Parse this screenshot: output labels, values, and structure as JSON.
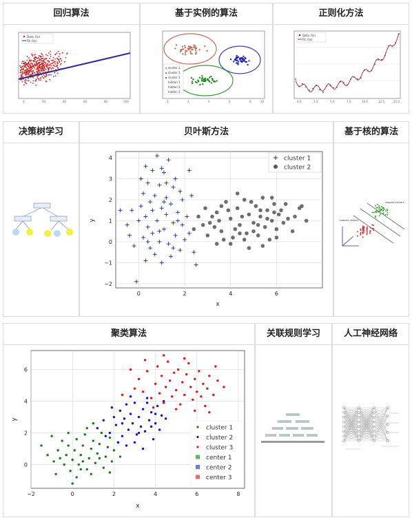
{
  "panels": {
    "regression": {
      "title": "回归算法",
      "legend": [
        "Data: f(x)",
        "Fit: f(x)"
      ]
    },
    "instance": {
      "title": "基于实例的算法",
      "legend": [
        "cluster 1",
        "cluster 2",
        "cluster 3",
        "hidden 1",
        "hidden 2",
        "hidden 3"
      ]
    },
    "regularization": {
      "title": "正则化方法",
      "legend": [
        "Data: f(x)",
        "Fit: f(x)"
      ]
    },
    "decision_tree": {
      "title": "决策树学习"
    },
    "bayes": {
      "title": "贝叶斯方法"
    },
    "kernel": {
      "title": "基于核的算法",
      "labels": [
        "support vectors",
        "support vectors"
      ]
    },
    "clustering": {
      "title": "聚类算法"
    },
    "association": {
      "title": "关联规则学习"
    },
    "neural": {
      "title": "人工神经网络"
    }
  },
  "chart_data": [
    {
      "type": "scatter",
      "id": "bayes",
      "xlabel": "x",
      "ylabel": "y",
      "xlim": [
        -1,
        8
      ],
      "ylim": [
        -2.2,
        4.3
      ],
      "xticks": [
        0,
        2,
        4,
        6
      ],
      "yticks": [
        -2,
        -1,
        0,
        1,
        2,
        3,
        4
      ],
      "grid": true,
      "legend_position": "top-right",
      "series": [
        {
          "name": "cluster 1",
          "marker": "plus",
          "color": "#1a2a9a",
          "points": [
            [
              0.8,
              4.1
            ],
            [
              0.3,
              3.6
            ],
            [
              0.6,
              3.4
            ],
            [
              1.3,
              3.9
            ],
            [
              1.0,
              3.5
            ],
            [
              1.6,
              3.0
            ],
            [
              0.4,
              2.8
            ],
            [
              1.1,
              3.3
            ],
            [
              2.2,
              3.4
            ],
            [
              0.9,
              2.7
            ],
            [
              1.5,
              2.6
            ],
            [
              0.2,
              2.3
            ],
            [
              1.8,
              2.4
            ],
            [
              0.7,
              2.2
            ],
            [
              1.2,
              2.1
            ],
            [
              0.5,
              1.9
            ],
            [
              1.9,
              2.0
            ],
            [
              0.1,
              1.7
            ],
            [
              1.4,
              1.8
            ],
            [
              2.3,
              2.2
            ],
            [
              0.6,
              1.5
            ],
            [
              1.0,
              1.6
            ],
            [
              -0.3,
              1.5
            ],
            [
              1.7,
              1.4
            ],
            [
              0.3,
              1.2
            ],
            [
              1.2,
              1.3
            ],
            [
              0.8,
              1.0
            ],
            [
              2.1,
              1.2
            ],
            [
              0.0,
              1.0
            ],
            [
              1.5,
              0.9
            ],
            [
              0.4,
              0.7
            ],
            [
              1.9,
              0.8
            ],
            [
              -0.5,
              0.8
            ],
            [
              1.1,
              0.6
            ],
            [
              0.6,
              0.4
            ],
            [
              1.6,
              0.3
            ],
            [
              0.2,
              0.2
            ],
            [
              2.0,
              0.1
            ],
            [
              0.9,
              0.0
            ],
            [
              1.3,
              -0.1
            ],
            [
              -0.2,
              -0.2
            ],
            [
              0.5,
              -0.3
            ],
            [
              1.8,
              -0.4
            ],
            [
              0.7,
              -0.6
            ],
            [
              1.4,
              -0.7
            ],
            [
              2.4,
              -0.5
            ],
            [
              0.3,
              -0.9
            ],
            [
              1.0,
              -1.0
            ],
            [
              -0.8,
              1.5
            ],
            [
              2.5,
              -1.1
            ],
            [
              -0.1,
              -1.9
            ],
            [
              1.2,
              2.8
            ],
            [
              0.1,
              3.0
            ],
            [
              1.7,
              1.0
            ],
            [
              0.9,
              0.5
            ],
            [
              0.4,
              0.0
            ],
            [
              1.5,
              -0.3
            ],
            [
              2.2,
              0.4
            ],
            [
              -0.4,
              0.3
            ],
            [
              1.1,
              1.9
            ]
          ]
        },
        {
          "name": "cluster 2",
          "marker": "circle",
          "color": "#555555",
          "points": [
            [
              2.6,
              1.2
            ],
            [
              2.9,
              1.6
            ],
            [
              3.1,
              0.9
            ],
            [
              3.4,
              1.4
            ],
            [
              3.6,
              0.5
            ],
            [
              3.8,
              1.9
            ],
            [
              4.0,
              1.1
            ],
            [
              4.1,
              0.2
            ],
            [
              4.3,
              1.6
            ],
            [
              4.4,
              0.8
            ],
            [
              4.6,
              2.0
            ],
            [
              4.7,
              0.4
            ],
            [
              4.8,
              1.3
            ],
            [
              5.0,
              0.9
            ],
            [
              5.1,
              1.7
            ],
            [
              5.2,
              0.3
            ],
            [
              5.3,
              1.2
            ],
            [
              5.4,
              2.1
            ],
            [
              5.5,
              0.7
            ],
            [
              5.6,
              1.5
            ],
            [
              5.7,
              0.1
            ],
            [
              5.8,
              1.0
            ],
            [
              5.9,
              1.8
            ],
            [
              6.0,
              0.6
            ],
            [
              6.1,
              1.3
            ],
            [
              6.3,
              0.9
            ],
            [
              6.5,
              1.1
            ],
            [
              6.7,
              0.5
            ],
            [
              7.0,
              1.6
            ],
            [
              7.3,
              1.0
            ],
            [
              3.3,
              0.7
            ],
            [
              3.9,
              1.5
            ],
            [
              4.2,
              0.6
            ],
            [
              4.5,
              1.2
            ],
            [
              4.9,
              1.9
            ],
            [
              5.2,
              0.8
            ],
            [
              5.6,
              1.1
            ],
            [
              6.2,
              1.5
            ],
            [
              2.8,
              0.8
            ],
            [
              3.5,
              1.0
            ],
            [
              4.0,
              -0.1
            ],
            [
              4.6,
              0.1
            ],
            [
              5.4,
              -0.2
            ],
            [
              6.4,
              1.8
            ],
            [
              3.2,
              1.2
            ],
            [
              3.7,
              0.1
            ],
            [
              4.3,
              2.3
            ],
            [
              5.0,
              0.5
            ],
            [
              5.8,
              2.1
            ],
            [
              6.8,
              1.2
            ],
            [
              2.4,
              0.6
            ],
            [
              3.0,
              0.3
            ],
            [
              4.8,
              -0.3
            ],
            [
              5.3,
              1.5
            ],
            [
              6.0,
              0.2
            ],
            [
              7.1,
              1.7
            ],
            [
              3.6,
              1.7
            ],
            [
              4.4,
              0.4
            ],
            [
              5.9,
              1.4
            ],
            [
              3.4,
              -0.1
            ]
          ]
        }
      ]
    },
    {
      "type": "scatter",
      "id": "clustering",
      "xlabel": "x",
      "ylabel": "y",
      "xlim": [
        -2,
        8.3
      ],
      "ylim": [
        -1.5,
        7.2
      ],
      "xticks": [
        -2,
        0,
        2,
        4,
        6,
        8
      ],
      "yticks": [
        0,
        2,
        4,
        6
      ],
      "grid": true,
      "legend_position": "bottom-right",
      "series": [
        {
          "name": "cluster 1",
          "marker": "dot",
          "color": "#1a7a1a",
          "points": [
            [
              -1.5,
              1.2
            ],
            [
              -1.2,
              0.6
            ],
            [
              -0.9,
              0.2
            ],
            [
              -0.7,
              0.9
            ],
            [
              -0.5,
              1.5
            ],
            [
              -0.4,
              0.0
            ],
            [
              -0.3,
              0.6
            ],
            [
              -0.2,
              1.2
            ],
            [
              -0.1,
              -0.4
            ],
            [
              0.0,
              0.3
            ],
            [
              0.1,
              0.9
            ],
            [
              0.2,
              1.6
            ],
            [
              0.3,
              0.0
            ],
            [
              0.4,
              0.6
            ],
            [
              0.5,
              1.2
            ],
            [
              0.6,
              1.9
            ],
            [
              0.7,
              -0.3
            ],
            [
              0.8,
              0.4
            ],
            [
              0.9,
              1.0
            ],
            [
              1.0,
              1.5
            ],
            [
              1.1,
              0.1
            ],
            [
              1.2,
              0.7
            ],
            [
              1.3,
              1.3
            ],
            [
              1.4,
              2.0
            ],
            [
              1.5,
              -0.2
            ],
            [
              1.6,
              0.5
            ],
            [
              1.7,
              1.1
            ],
            [
              1.8,
              1.7
            ],
            [
              1.9,
              0.2
            ],
            [
              2.0,
              0.9
            ],
            [
              -0.8,
              -0.6
            ],
            [
              -0.6,
              0.4
            ],
            [
              0.2,
              -0.8
            ],
            [
              0.5,
              0.2
            ],
            [
              0.9,
              -0.6
            ],
            [
              1.3,
              0.4
            ],
            [
              1.8,
              -0.5
            ],
            [
              -0.2,
              2.0
            ],
            [
              0.7,
              2.3
            ],
            [
              2.2,
              1.4
            ],
            [
              -1.0,
              1.8
            ],
            [
              0.0,
              -1.2
            ],
            [
              1.0,
              2.6
            ],
            [
              2.3,
              0.5
            ],
            [
              0.4,
              -0.3
            ]
          ]
        },
        {
          "name": "cluster 2",
          "marker": "dot",
          "color": "#1414c8",
          "points": [
            [
              1.2,
              2.3
            ],
            [
              1.5,
              2.8
            ],
            [
              1.8,
              2.0
            ],
            [
              2.0,
              3.0
            ],
            [
              2.1,
              2.5
            ],
            [
              2.3,
              3.4
            ],
            [
              2.4,
              1.8
            ],
            [
              2.5,
              2.9
            ],
            [
              2.6,
              3.8
            ],
            [
              2.7,
              2.2
            ],
            [
              2.8,
              3.2
            ],
            [
              2.9,
              2.6
            ],
            [
              3.0,
              3.9
            ],
            [
              3.1,
              1.9
            ],
            [
              3.2,
              3.0
            ],
            [
              3.3,
              2.4
            ],
            [
              3.4,
              3.5
            ],
            [
              3.5,
              2.1
            ],
            [
              3.6,
              4.2
            ],
            [
              3.7,
              2.8
            ],
            [
              3.8,
              3.3
            ],
            [
              3.9,
              1.6
            ],
            [
              4.0,
              2.6
            ],
            [
              4.1,
              3.7
            ],
            [
              4.2,
              2.2
            ],
            [
              4.3,
              3.1
            ],
            [
              4.4,
              4.0
            ],
            [
              2.2,
              1.4
            ],
            [
              2.6,
              1.2
            ],
            [
              3.0,
              1.4
            ],
            [
              3.4,
              1.0
            ],
            [
              1.9,
              3.6
            ],
            [
              2.8,
              4.3
            ],
            [
              3.6,
              3.9
            ],
            [
              4.5,
              2.9
            ],
            [
              1.6,
              1.8
            ],
            [
              2.4,
              2.6
            ],
            [
              3.2,
              2.0
            ],
            [
              4.0,
              3.2
            ],
            [
              3.8,
              2.4
            ]
          ]
        },
        {
          "name": "cluster 3",
          "marker": "dot",
          "color": "#e01818",
          "points": [
            [
              3.2,
              5.4
            ],
            [
              3.4,
              4.6
            ],
            [
              3.6,
              5.9
            ],
            [
              3.8,
              4.2
            ],
            [
              4.0,
              5.1
            ],
            [
              4.1,
              6.2
            ],
            [
              4.2,
              4.5
            ],
            [
              4.3,
              5.6
            ],
            [
              4.4,
              3.9
            ],
            [
              4.5,
              4.9
            ],
            [
              4.6,
              6.5
            ],
            [
              4.7,
              5.3
            ],
            [
              4.8,
              4.3
            ],
            [
              4.9,
              5.8
            ],
            [
              5.0,
              4.7
            ],
            [
              5.1,
              6.0
            ],
            [
              5.2,
              3.8
            ],
            [
              5.3,
              5.2
            ],
            [
              5.4,
              4.4
            ],
            [
              5.5,
              5.7
            ],
            [
              5.6,
              6.4
            ],
            [
              5.7,
              4.9
            ],
            [
              5.8,
              4.1
            ],
            [
              5.9,
              5.4
            ],
            [
              6.0,
              4.6
            ],
            [
              6.1,
              5.9
            ],
            [
              6.2,
              4.3
            ],
            [
              6.3,
              5.1
            ],
            [
              6.4,
              3.7
            ],
            [
              6.5,
              4.8
            ],
            [
              6.6,
              5.6
            ],
            [
              6.8,
              4.4
            ],
            [
              7.0,
              5.3
            ],
            [
              7.3,
              4.9
            ],
            [
              2.8,
              6.0
            ],
            [
              3.0,
              4.8
            ],
            [
              3.5,
              6.6
            ],
            [
              4.4,
              6.9
            ],
            [
              5.0,
              3.5
            ],
            [
              5.9,
              3.4
            ],
            [
              6.9,
              6.2
            ],
            [
              2.4,
              4.4
            ],
            [
              3.9,
              3.6
            ],
            [
              5.4,
              6.7
            ],
            [
              6.6,
              3.3
            ]
          ]
        },
        {
          "name": "center 1",
          "marker": "square",
          "color": "#5cb85c",
          "points": []
        },
        {
          "name": "center 2",
          "marker": "square",
          "color": "#6a7ae0",
          "points": []
        },
        {
          "name": "center 3",
          "marker": "square",
          "color": "#e86a6a",
          "points": []
        }
      ]
    }
  ]
}
